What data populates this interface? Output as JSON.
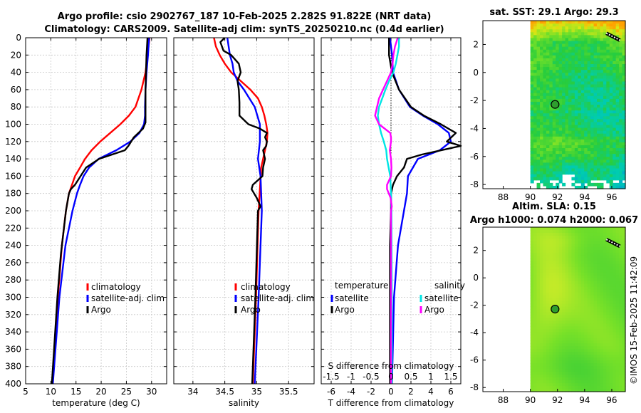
{
  "title": {
    "line1": "Argo profile: csio 2902767_187 10-Feb-2025 2.282S 91.822E (NRT data)",
    "line2": "Climatology: CARS2009. Satellite-adj clim: synTS_20250210.nc (0.4d earlier)"
  },
  "watermark": "©IMOS 15-Feb-2025 11:42:09",
  "colors": {
    "climatology": "#ff0000",
    "satellite": "#0000ff",
    "argo": "#000000",
    "salinity_satellite": "#00e5e5",
    "salinity_argo": "#ff00ff",
    "marker": "#2e9e2e"
  },
  "chart_data": [
    {
      "type": "line",
      "name": "temperature",
      "xlabel": "temperature (deg C)",
      "ylabel": "",
      "xlim": [
        5,
        33
      ],
      "ylim": [
        400,
        0
      ],
      "xticks": [
        5,
        10,
        15,
        20,
        25,
        30
      ],
      "yticks": [
        0,
        20,
        40,
        60,
        80,
        100,
        120,
        140,
        160,
        180,
        200,
        220,
        240,
        260,
        280,
        300,
        320,
        340,
        360,
        380,
        400
      ],
      "legend": [
        "climatology",
        "satellite-adj. clim",
        "Argo"
      ],
      "series": [
        {
          "name": "climatology",
          "color": "#ff0000",
          "depth": [
            0,
            20,
            40,
            60,
            80,
            90,
            100,
            110,
            120,
            130,
            140,
            150,
            160,
            170,
            180,
            200,
            240,
            300,
            400
          ],
          "values": [
            29.6,
            29.2,
            28.8,
            28.0,
            26.8,
            25.5,
            23.8,
            21.8,
            19.8,
            18.1,
            16.8,
            15.8,
            14.8,
            14.2,
            13.6,
            13.0,
            12.2,
            11.4,
            10.3
          ]
        },
        {
          "name": "satellite-adj. clim",
          "color": "#0000ff",
          "depth": [
            0,
            20,
            40,
            60,
            80,
            90,
            100,
            110,
            120,
            130,
            140,
            150,
            160,
            170,
            180,
            200,
            240,
            300,
            400
          ],
          "values": [
            29.5,
            29.3,
            29.0,
            28.8,
            28.7,
            28.7,
            28.5,
            27.6,
            25.8,
            23.0,
            19.5,
            17.6,
            16.5,
            15.8,
            15.2,
            14.3,
            12.9,
            11.7,
            10.4
          ]
        },
        {
          "name": "Argo",
          "color": "#000000",
          "depth": [
            0,
            20,
            40,
            60,
            80,
            98,
            105,
            115,
            125,
            130,
            140,
            150,
            160,
            170,
            175,
            180,
            200,
            250,
            300,
            400
          ],
          "values": [
            29.2,
            29.0,
            28.9,
            28.8,
            28.8,
            28.8,
            28.3,
            26.5,
            25.4,
            24.7,
            19.6,
            17.0,
            15.9,
            14.8,
            14.0,
            13.6,
            13.0,
            12.0,
            11.3,
            10.2
          ]
        }
      ]
    },
    {
      "type": "line",
      "name": "salinity",
      "xlabel": "salinity",
      "ylabel": "",
      "xlim": [
        33.7,
        35.9
      ],
      "ylim": [
        400,
        0
      ],
      "xticks": [
        34,
        34.5,
        35,
        35.5
      ],
      "legend": [
        "climatology",
        "satellite-adj. clim",
        "Argo"
      ],
      "series": [
        {
          "name": "climatology",
          "color": "#ff0000",
          "depth": [
            0,
            10,
            20,
            30,
            40,
            50,
            60,
            70,
            80,
            90,
            100,
            110,
            120,
            130,
            140,
            150,
            200,
            300,
            400
          ],
          "values": [
            34.33,
            34.36,
            34.42,
            34.5,
            34.6,
            34.75,
            34.9,
            35.02,
            35.08,
            35.12,
            35.15,
            35.17,
            35.16,
            35.13,
            35.1,
            35.07,
            35.03,
            34.99,
            34.94
          ]
        },
        {
          "name": "satellite-adj. clim",
          "color": "#0000ff",
          "depth": [
            0,
            10,
            20,
            30,
            40,
            50,
            60,
            80,
            100,
            120,
            140,
            160,
            180,
            200,
            300,
            400
          ],
          "values": [
            34.54,
            34.56,
            34.58,
            34.62,
            34.64,
            34.7,
            34.8,
            34.97,
            35.05,
            35.05,
            35.02,
            35.06,
            35.07,
            35.08,
            35.03,
            34.97
          ]
        },
        {
          "name": "Argo",
          "color": "#000000",
          "depth": [
            0,
            5,
            15,
            20,
            30,
            40,
            50,
            60,
            75,
            90,
            100,
            105,
            110,
            115,
            120,
            125,
            130,
            140,
            150,
            160,
            170,
            175,
            185,
            195,
            200,
            300,
            400
          ],
          "values": [
            34.5,
            34.43,
            34.48,
            34.6,
            34.72,
            34.75,
            34.7,
            34.72,
            34.73,
            34.73,
            34.87,
            35.05,
            35.16,
            35.13,
            35.16,
            35.15,
            35.1,
            35.13,
            35.1,
            35.09,
            34.94,
            34.92,
            35.0,
            35.06,
            35.02,
            34.98,
            34.93
          ]
        }
      ]
    },
    {
      "type": "line",
      "name": "difference-from-climatology",
      "xlabel": "T difference from climatology",
      "x2label": "S difference from climatology",
      "ylabel": "",
      "xlim": [
        -7,
        7
      ],
      "ylim": [
        400,
        0
      ],
      "xticks": [
        -6,
        -4,
        -2,
        0,
        2,
        4,
        6
      ],
      "x2ticks": [
        -1.5,
        -1,
        -0.5,
        0,
        0.5,
        1,
        1.5
      ],
      "legend_temperature": {
        "title": "temperature",
        "entries": [
          "satellite",
          "Argo"
        ]
      },
      "legend_salinity": {
        "title": "salinity",
        "entries": [
          "satellite",
          "Argo"
        ]
      },
      "series": [
        {
          "name": "temperature satellite",
          "color": "#0000ff",
          "axis": "T",
          "depth": [
            0,
            20,
            40,
            60,
            80,
            90,
            100,
            110,
            120,
            130,
            140,
            160,
            180,
            200,
            240,
            300,
            400
          ],
          "values": [
            -0.1,
            0.1,
            0.2,
            0.8,
            1.9,
            3.2,
            4.7,
            5.8,
            6.0,
            4.9,
            2.7,
            1.7,
            1.6,
            1.3,
            0.7,
            0.3,
            0.1
          ]
        },
        {
          "name": "temperature Argo",
          "color": "#000000",
          "axis": "T",
          "depth": [
            0,
            20,
            40,
            60,
            80,
            90,
            100,
            110,
            120,
            125,
            135,
            140,
            150,
            160,
            170,
            180,
            200,
            240,
            300,
            400
          ],
          "values": [
            -0.2,
            -0.2,
            0.1,
            0.8,
            2.0,
            3.3,
            5.0,
            6.5,
            5.6,
            7.0,
            3.1,
            1.6,
            1.3,
            0.6,
            0.2,
            0.0,
            0.0,
            -0.1,
            -0.1,
            -0.1
          ]
        },
        {
          "name": "salinity satellite",
          "color": "#00e5e5",
          "axis": "S",
          "depth": [
            0,
            10,
            20,
            30,
            40,
            50,
            60,
            70,
            80,
            90,
            100,
            110,
            120,
            130,
            140,
            160,
            180,
            200,
            300,
            400
          ],
          "values": [
            0.2,
            0.2,
            0.16,
            0.12,
            0.06,
            -0.05,
            -0.14,
            -0.22,
            -0.3,
            -0.33,
            -0.3,
            -0.25,
            -0.18,
            -0.12,
            -0.1,
            -0.02,
            0.0,
            0.01,
            0.02,
            0.02
          ]
        },
        {
          "name": "salinity Argo",
          "color": "#ff00ff",
          "axis": "S",
          "depth": [
            0,
            10,
            20,
            30,
            40,
            50,
            60,
            70,
            80,
            90,
            100,
            110,
            115,
            120,
            130,
            140,
            150,
            160,
            170,
            175,
            185,
            195,
            200,
            300,
            400
          ],
          "values": [
            0.17,
            0.1,
            0.06,
            0.04,
            0.0,
            -0.1,
            -0.2,
            -0.3,
            -0.35,
            -0.4,
            -0.3,
            -0.02,
            0.0,
            0.0,
            -0.03,
            0.0,
            0.01,
            0.0,
            -0.1,
            -0.1,
            -0.01,
            0.02,
            0.0,
            0.0,
            0.0
          ]
        }
      ]
    },
    {
      "type": "heatmap",
      "name": "satellite-sst-map",
      "title": "sat. SST: 29.1 Argo: 29.3",
      "xticks": [
        88,
        90,
        92,
        94,
        96
      ],
      "yticks": [
        2,
        0,
        -2,
        -4,
        -6,
        -8
      ],
      "xlim": [
        86.5,
        97
      ],
      "ylim": [
        -8.3,
        3.7
      ],
      "data_lon_start": 90,
      "marker": {
        "lon": 91.82,
        "lat": -2.28
      },
      "track": {
        "lon": [
          95.6,
          96.6
        ],
        "lat": [
          2.8,
          2.3
        ]
      }
    },
    {
      "type": "heatmap",
      "name": "altimetry-sla-map",
      "title": "Altim. SLA: 0.15",
      "subtitle": "Argo h1000: 0.074 h2000: 0.067",
      "xticks": [
        88,
        90,
        92,
        94,
        96
      ],
      "yticks": [
        2,
        0,
        -2,
        -4,
        -6,
        -8
      ],
      "xlim": [
        86.5,
        97
      ],
      "ylim": [
        -8.3,
        3.7
      ],
      "data_lon_start": 90,
      "marker": {
        "lon": 91.82,
        "lat": -2.28
      },
      "track": {
        "lon": [
          95.6,
          96.6
        ],
        "lat": [
          2.8,
          2.3
        ]
      }
    }
  ]
}
